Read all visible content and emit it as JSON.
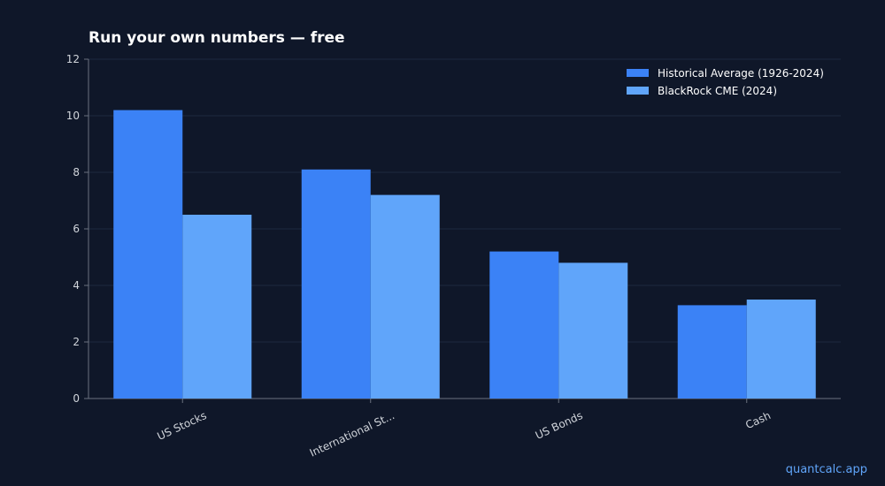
{
  "chart_data": {
    "type": "bar",
    "title": "Run your own numbers — free",
    "xlabel": "",
    "ylabel": "",
    "categories": [
      "US Stocks",
      "International St...",
      "US Bonds",
      "Cash"
    ],
    "series": [
      {
        "name": "Historical Average (1926-2024)",
        "values": [
          10.2,
          8.1,
          5.2,
          3.3
        ],
        "color": "#3b82f6"
      },
      {
        "name": "BlackRock CME (2024)",
        "values": [
          6.5,
          7.2,
          4.8,
          3.5
        ],
        "color": "#60a5fa"
      }
    ],
    "ylim": [
      0,
      12
    ],
    "yticks": [
      0,
      2,
      4,
      6,
      8,
      10,
      12
    ],
    "grid": true,
    "legend": "top-right"
  },
  "colors": {
    "background": "#0f1729",
    "grid": "#1c2840",
    "axis": "#6b7280",
    "tick_text": "#d1d5db"
  },
  "footer": {
    "watermark": "quantcalc.app"
  }
}
